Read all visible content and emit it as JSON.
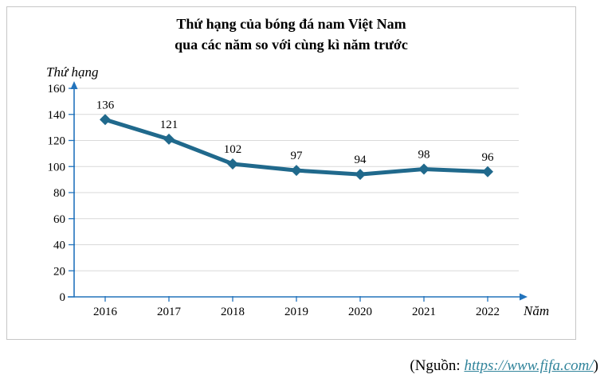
{
  "chart": {
    "title_line1": "Thứ hạng của bóng đá nam Việt Nam",
    "title_line2": "qua các năm so với cùng kì năm trước"
  },
  "chart_data": {
    "type": "line",
    "categories": [
      "2016",
      "2017",
      "2018",
      "2019",
      "2020",
      "2021",
      "2022"
    ],
    "values": [
      136,
      121,
      102,
      97,
      94,
      98,
      96
    ],
    "title": "Thứ hạng của bóng đá nam Việt Nam qua các năm so với cùng kì năm trước",
    "xlabel": "Năm",
    "ylabel": "Thứ hạng",
    "ylim": [
      0,
      160
    ],
    "ytick_step": 20,
    "yticks": [
      0,
      20,
      40,
      60,
      80,
      100,
      120,
      140,
      160
    ],
    "grid": true,
    "legend": "none",
    "marker": "diamond",
    "data_labels": true
  },
  "colors": {
    "series_line": "#20698C",
    "axis": "#2273BC",
    "gridline": "#d9d9d9",
    "box_border": "#c6c6c6",
    "link": "#31849B",
    "text": "#000000"
  },
  "source": {
    "prefix": "(Nguồn: ",
    "link_text": "https://www.fifa.com/",
    "suffix": ")"
  }
}
